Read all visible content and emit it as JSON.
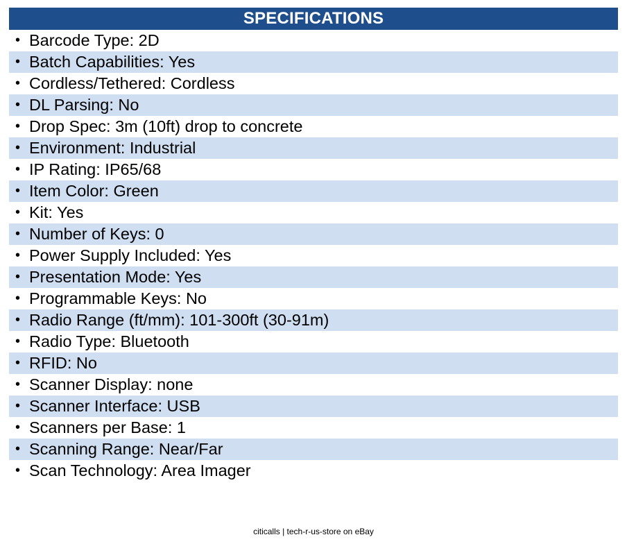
{
  "header": {
    "title": "SPECIFICATIONS"
  },
  "specs": [
    "Barcode Type: 2D",
    "Batch Capabilities: Yes",
    "Cordless/Tethered: Cordless",
    "DL Parsing: No",
    "Drop Spec: 3m (10ft) drop to concrete",
    "Environment: Industrial",
    "IP Rating: IP65/68",
    "Item Color: Green",
    "Kit: Yes",
    "Number of Keys: 0",
    "Power Supply Included: Yes",
    "Presentation Mode: Yes",
    "Programmable Keys: No",
    "Radio Range (ft/mm): 101-300ft (30-91m)",
    "Radio Type: Bluetooth",
    "RFID: No",
    "Scanner Display: none",
    "Scanner Interface: USB",
    "Scanners per Base: 1",
    "Scanning Range: Near/Far",
    "Scan Technology: Area Imager"
  ],
  "bullet_glyph": "•",
  "footer": {
    "text": "citicalls | tech-r-us-store on eBay"
  },
  "colors": {
    "header_background": "#1f4e8c",
    "header_text": "#ffffff",
    "shaded_row": "#cfdff1"
  }
}
